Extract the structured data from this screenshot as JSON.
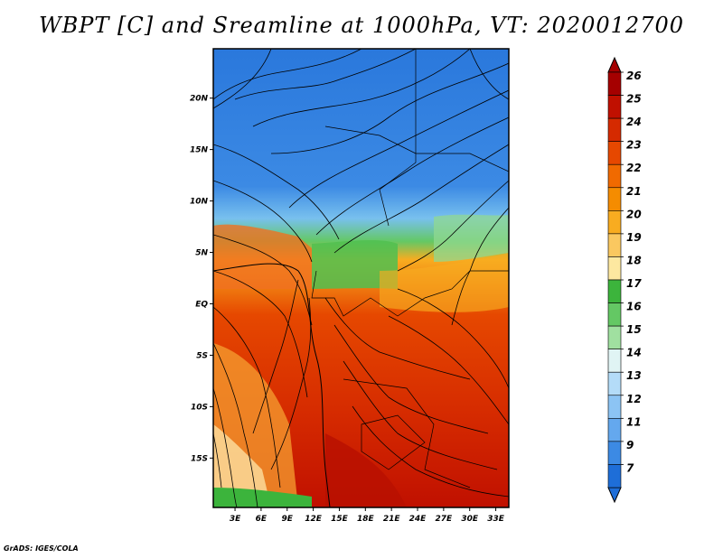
{
  "title": "WBPT [C] and Sreamline at 1000hPa, VT: 2020012700",
  "credit": "GrADS: IGES/COLA",
  "map": {
    "lat_labels": [
      "20N",
      "15N",
      "10N",
      "5N",
      "EQ",
      "5S",
      "10S",
      "15S"
    ],
    "lat_values": [
      20,
      15,
      10,
      5,
      0,
      -5,
      -10,
      -15
    ],
    "lon_labels": [
      "3E",
      "6E",
      "9E",
      "12E",
      "15E",
      "18E",
      "21E",
      "24E",
      "27E",
      "30E",
      "33E"
    ],
    "lon_values": [
      3,
      6,
      9,
      12,
      15,
      18,
      21,
      24,
      27,
      30,
      33
    ],
    "lon_range": [
      0.5,
      34.5
    ],
    "lat_range": [
      -19.8,
      24.8
    ]
  },
  "colorbar": {
    "labels": [
      "26",
      "25",
      "24",
      "23",
      "22",
      "21",
      "20",
      "19",
      "18",
      "17",
      "16",
      "15",
      "14",
      "13",
      "12",
      "11",
      "9",
      "7"
    ],
    "colors": [
      "#a50000",
      "#c01000",
      "#d52a00",
      "#e64800",
      "#f06a00",
      "#f58c00",
      "#f8ac20",
      "#fac860",
      "#fde8a0",
      "#3cb43c",
      "#64c864",
      "#a0e0a0",
      "#e0f4f4",
      "#b4dcf8",
      "#8cc4f4",
      "#64a8ee",
      "#3c8ae4",
      "#1e6ed8"
    ]
  }
}
